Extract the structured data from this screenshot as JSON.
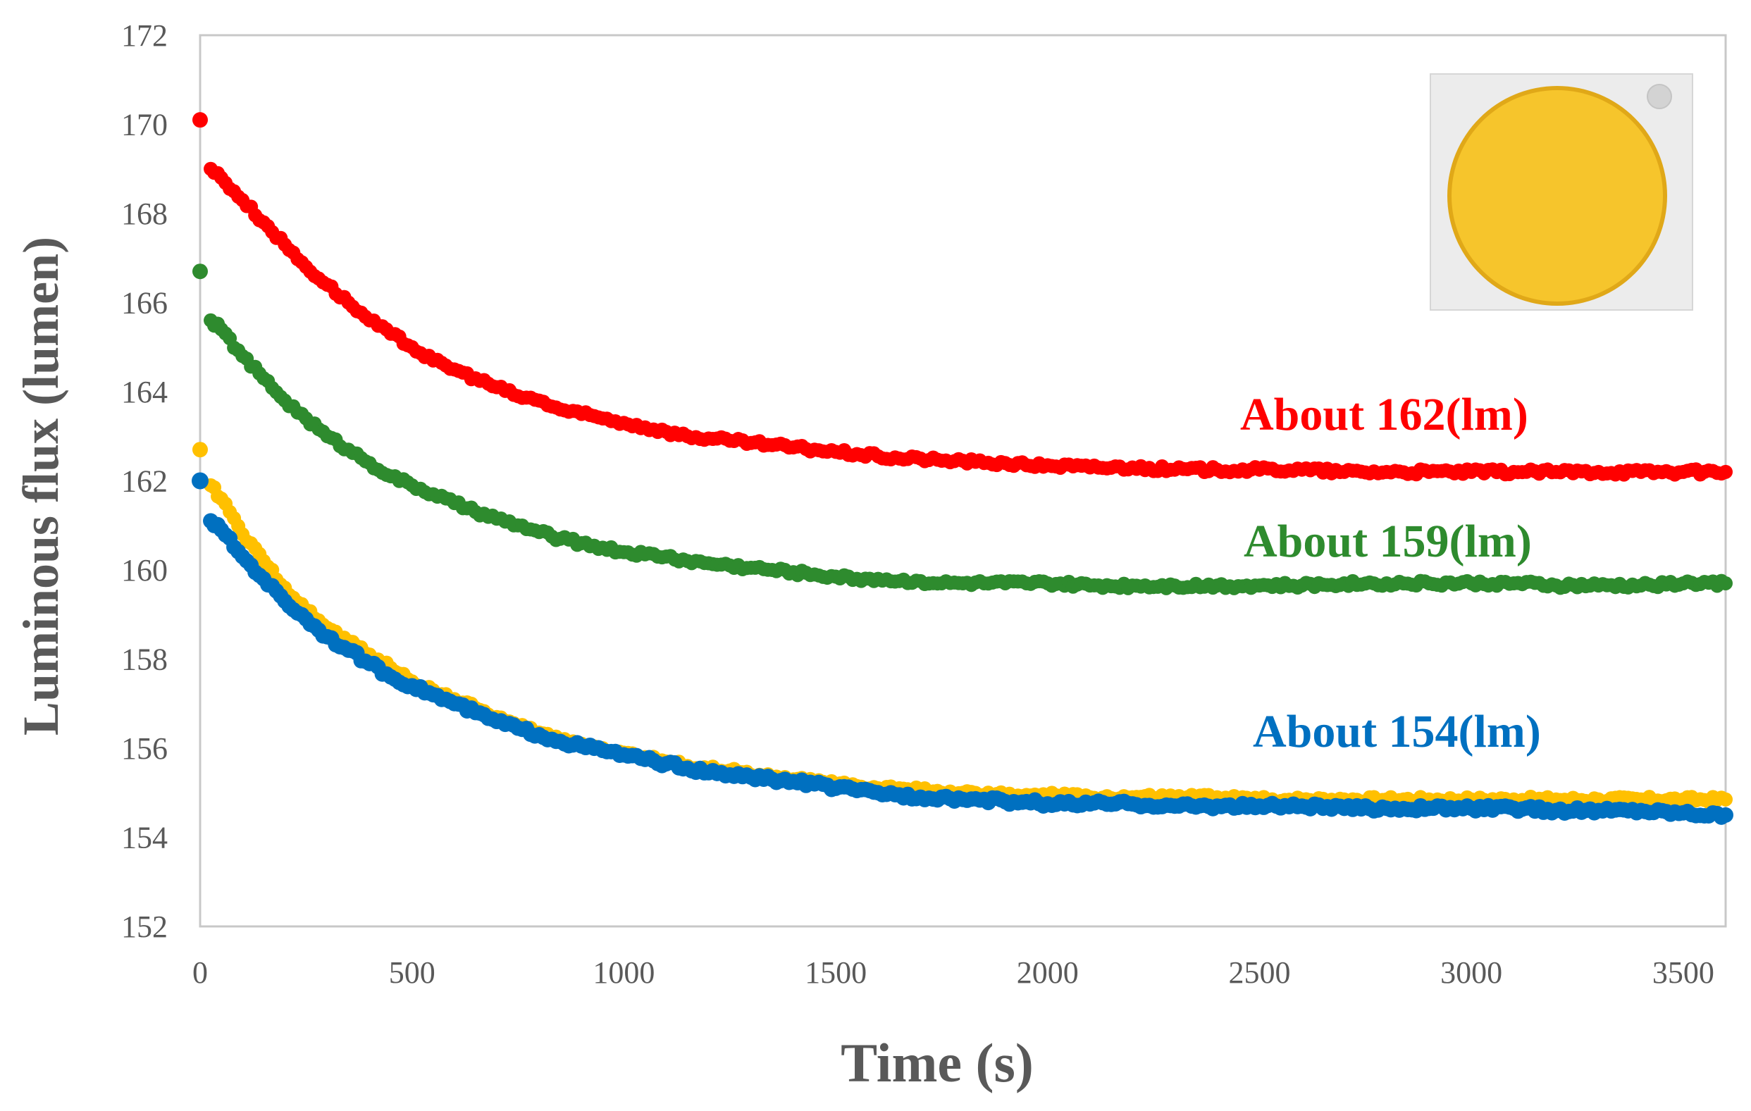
{
  "chart_data": {
    "type": "scatter",
    "title": "",
    "xlabel": "Time (s)",
    "ylabel": "Luminous flux (lumen)",
    "xlim": [
      0,
      3600
    ],
    "ylim": [
      152,
      172
    ],
    "xticks": [
      0,
      500,
      1000,
      1500,
      2000,
      2500,
      3000,
      3500
    ],
    "yticks": [
      152,
      154,
      156,
      158,
      160,
      162,
      164,
      166,
      168,
      170,
      172
    ],
    "series": [
      {
        "name": "red",
        "color": "#ff0000",
        "x": [
          0,
          25,
          50,
          100,
          150,
          200,
          250,
          300,
          350,
          400,
          450,
          500,
          550,
          600,
          650,
          700,
          750,
          800,
          850,
          900,
          950,
          1000,
          1050,
          1100,
          1150,
          1200,
          1250,
          1300,
          1350,
          1400,
          1450,
          1500,
          1550,
          1600,
          1650,
          1700,
          1750,
          1800,
          1850,
          1900,
          1950,
          2000,
          2100,
          2200,
          2300,
          2400,
          2500,
          2600,
          2700,
          2800,
          2900,
          3000,
          3100,
          3200,
          3300,
          3400,
          3500,
          3600
        ],
        "y": [
          170.1,
          169.0,
          168.8,
          168.3,
          167.8,
          167.3,
          166.8,
          166.4,
          166.0,
          165.6,
          165.3,
          165.0,
          164.7,
          164.5,
          164.3,
          164.1,
          163.9,
          163.8,
          163.6,
          163.5,
          163.4,
          163.3,
          163.2,
          163.1,
          163.0,
          162.95,
          162.9,
          162.85,
          162.8,
          162.75,
          162.7,
          162.65,
          162.6,
          162.55,
          162.5,
          162.5,
          162.45,
          162.45,
          162.4,
          162.4,
          162.35,
          162.35,
          162.3,
          162.3,
          162.25,
          162.25,
          162.25,
          162.25,
          162.2,
          162.2,
          162.2,
          162.2,
          162.2,
          162.2,
          162.2,
          162.2,
          162.2,
          162.2
        ]
      },
      {
        "name": "green",
        "color": "#2e8b2e",
        "x": [
          0,
          25,
          50,
          100,
          150,
          200,
          250,
          300,
          350,
          400,
          450,
          500,
          550,
          600,
          650,
          700,
          750,
          800,
          850,
          900,
          950,
          1000,
          1050,
          1100,
          1150,
          1200,
          1250,
          1300,
          1350,
          1400,
          1450,
          1500,
          1550,
          1600,
          1650,
          1700,
          1750,
          1800,
          1850,
          1900,
          1950,
          2000,
          2100,
          2200,
          2300,
          2400,
          2500,
          2600,
          2700,
          2800,
          2900,
          3000,
          3100,
          3200,
          3300,
          3400,
          3500,
          3600
        ],
        "y": [
          166.7,
          165.6,
          165.4,
          164.8,
          164.3,
          163.8,
          163.4,
          163.0,
          162.7,
          162.4,
          162.1,
          161.9,
          161.7,
          161.5,
          161.3,
          161.15,
          161.0,
          160.85,
          160.7,
          160.6,
          160.5,
          160.4,
          160.35,
          160.3,
          160.2,
          160.15,
          160.1,
          160.05,
          160.0,
          159.95,
          159.9,
          159.85,
          159.8,
          159.8,
          159.75,
          159.75,
          159.7,
          159.7,
          159.7,
          159.7,
          159.7,
          159.7,
          159.65,
          159.65,
          159.65,
          159.65,
          159.65,
          159.65,
          159.7,
          159.7,
          159.7,
          159.7,
          159.7,
          159.65,
          159.65,
          159.65,
          159.7,
          159.7
        ]
      },
      {
        "name": "yellow",
        "color": "#ffc000",
        "x": [
          0,
          25,
          50,
          100,
          150,
          200,
          250,
          300,
          350,
          400,
          450,
          500,
          550,
          600,
          650,
          700,
          750,
          800,
          850,
          900,
          950,
          1000,
          1050,
          1100,
          1150,
          1200,
          1250,
          1300,
          1350,
          1400,
          1450,
          1500,
          1550,
          1600,
          1650,
          1700,
          1750,
          1800,
          1850,
          1900,
          1950,
          2000,
          2100,
          2200,
          2300,
          2400,
          2500,
          2600,
          2700,
          2800,
          2900,
          3000,
          3100,
          3200,
          3300,
          3400,
          3500,
          3600
        ],
        "y": [
          162.7,
          161.9,
          161.6,
          160.8,
          160.2,
          159.6,
          159.1,
          158.7,
          158.4,
          158.1,
          157.8,
          157.5,
          157.3,
          157.1,
          156.9,
          156.7,
          156.5,
          156.35,
          156.2,
          156.1,
          156.0,
          155.9,
          155.8,
          155.7,
          155.6,
          155.55,
          155.5,
          155.4,
          155.35,
          155.3,
          155.25,
          155.2,
          155.15,
          155.1,
          155.1,
          155.05,
          155.0,
          155.0,
          154.95,
          154.95,
          154.95,
          154.95,
          154.9,
          154.9,
          154.9,
          154.9,
          154.85,
          154.85,
          154.85,
          154.85,
          154.85,
          154.85,
          154.85,
          154.85,
          154.85,
          154.85,
          154.85,
          154.85
        ]
      },
      {
        "name": "blue",
        "color": "#0070c0",
        "x": [
          0,
          25,
          50,
          100,
          150,
          200,
          250,
          300,
          350,
          400,
          450,
          500,
          550,
          600,
          650,
          700,
          750,
          800,
          850,
          900,
          950,
          1000,
          1050,
          1100,
          1150,
          1200,
          1250,
          1300,
          1350,
          1400,
          1450,
          1500,
          1550,
          1600,
          1650,
          1700,
          1750,
          1800,
          1850,
          1900,
          1950,
          2000,
          2100,
          2200,
          2300,
          2400,
          2500,
          2600,
          2700,
          2800,
          2900,
          3000,
          3100,
          3200,
          3300,
          3400,
          3500,
          3600
        ],
        "y": [
          162.0,
          161.1,
          160.9,
          160.3,
          159.8,
          159.3,
          158.9,
          158.5,
          158.2,
          157.9,
          157.6,
          157.4,
          157.2,
          157.0,
          156.8,
          156.6,
          156.45,
          156.3,
          156.15,
          156.05,
          155.95,
          155.85,
          155.75,
          155.65,
          155.55,
          155.45,
          155.4,
          155.35,
          155.3,
          155.25,
          155.2,
          155.1,
          155.05,
          155.0,
          154.95,
          154.9,
          154.9,
          154.85,
          154.85,
          154.8,
          154.8,
          154.75,
          154.75,
          154.75,
          154.7,
          154.7,
          154.7,
          154.7,
          154.65,
          154.65,
          154.65,
          154.65,
          154.65,
          154.6,
          154.6,
          154.6,
          154.55,
          154.5
        ]
      }
    ],
    "annotations": [
      {
        "text": "About 162(lm)",
        "color": "#ff0000"
      },
      {
        "text": "About 159(lm)",
        "color": "#2e8b2e"
      },
      {
        "text": "About 154(lm)",
        "color": "#0070c0"
      }
    ],
    "inset": {
      "name": "LED COB package photo",
      "color": "#f6c52c"
    }
  }
}
